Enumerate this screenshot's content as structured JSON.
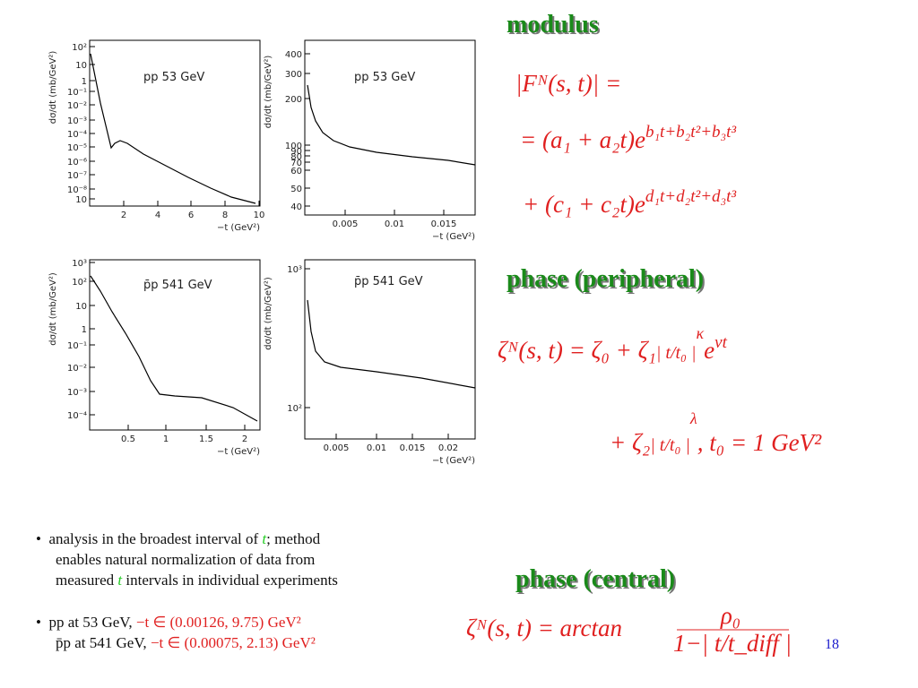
{
  "plots": [
    {
      "title": "pp  53 GeV",
      "ylabel": "dσ/dt (mb/GeV²)",
      "xlabel": "−t (GeV²)",
      "yticks": [
        "10²",
        "10",
        "1",
        "10⁻¹",
        "10⁻²",
        "10⁻³",
        "10⁻⁴",
        "10⁻⁵",
        "10⁻⁶",
        "10⁻⁷",
        "10⁻⁸",
        "10"
      ],
      "xticks": [
        "2",
        "4",
        "6",
        "8",
        "10"
      ]
    },
    {
      "title": "pp  53 GeV",
      "ylabel": "dσ/dt (mb/GeV²)",
      "xlabel": "−t (GeV²)",
      "yticks": [
        "400",
        "300",
        "200",
        "100",
        "90",
        "80",
        "70",
        "60",
        "50",
        "40"
      ],
      "xticks": [
        "0.005",
        "0.01",
        "0.015"
      ]
    },
    {
      "title": "p̄p 541 GeV",
      "ylabel": "dσ/dt (mb/GeV²)",
      "xlabel": "−t (GeV²)",
      "yticks": [
        "10³",
        "10²",
        "10",
        "1",
        "10⁻¹",
        "10⁻²",
        "10⁻³",
        "10⁻⁴"
      ],
      "xticks": [
        "0.5",
        "1",
        "1.5",
        "2"
      ]
    },
    {
      "title": "p̄p 541 GeV",
      "ylabel": "dσ/dt (mb/GeV²)",
      "xlabel": "−t (GeV²)",
      "yticks": [
        "10³",
        "10²"
      ],
      "xticks": [
        "0.005",
        "0.01",
        "0.015",
        "0.02"
      ]
    }
  ],
  "modulus": {
    "heading": "modulus",
    "line1": "|Fᴺ(s, t)| =",
    "line2": [
      "= (a₁ + a₂t)e",
      "b₁t+b₂t²+b₃t³"
    ],
    "line3": [
      "+  (c₁ + c₂t)e",
      "d₁t+d₂t²+d₃t³"
    ]
  },
  "peripheral": {
    "heading": "phase (peripheral)",
    "line1": [
      "ζᴺ(s, t) = ζ₀ + ζ₁",
      "| t/t₀ |",
      "κ",
      "e",
      "νt"
    ],
    "line2": [
      "+ ζ₂",
      "| t/t₀ |",
      "λ",
      ", t₀ = 1  GeV²"
    ]
  },
  "central": {
    "heading": "phase (central)",
    "lhs": "ζᴺ(s, t) = arctan",
    "num": "ρ₀",
    "den": "1−| t/t_diff |"
  },
  "bullets": [
    [
      "analysis in the broadest interval of ",
      "t",
      "; method",
      "enables natural normalization of data from",
      "measured ",
      "t",
      " intervals in individual experiments"
    ],
    [
      "pp at 53 GeV, ",
      "−t ∈ (0.00126, 9.75) GeV²",
      "p̄p at 541 GeV, ",
      "−t ∈ (0.00075, 2.13) GeV²"
    ]
  ],
  "page_number": "18"
}
